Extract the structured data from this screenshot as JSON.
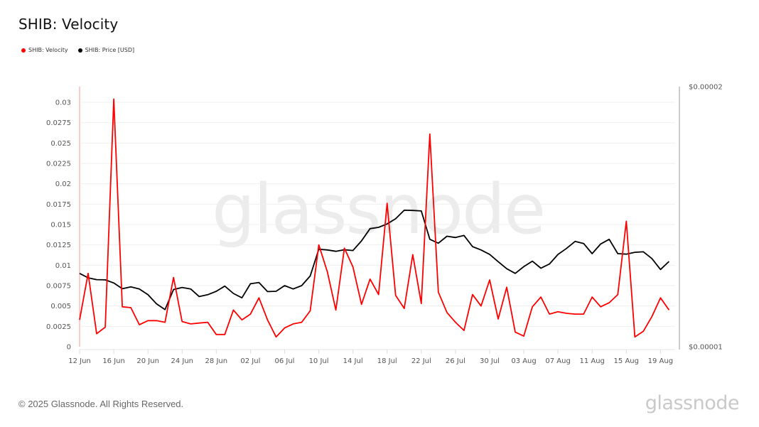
{
  "header": {
    "title": "SHIB: Velocity"
  },
  "legend": [
    {
      "label": "SHIB: Velocity",
      "color": "#ff0000"
    },
    {
      "label": "SHIB: Price [USD]",
      "color": "#000000"
    }
  ],
  "watermark": "glassnode",
  "footer": {
    "copyright": "© 2025 Glassnode. All Rights Reserved.",
    "logo": "glassnode"
  },
  "chart_data": {
    "type": "line",
    "title": "SHIB: Velocity",
    "xlabel": "",
    "ylabel": "",
    "grid": true,
    "legend_position": "top-left",
    "x_tick_labels": [
      "12 Jun",
      "16 Jun",
      "20 Jun",
      "24 Jun",
      "28 Jun",
      "02 Jul",
      "06 Jul",
      "10 Jul",
      "14 Jul",
      "18 Jul",
      "22 Jul",
      "26 Jul",
      "30 Jul",
      "03 Aug",
      "07 Aug",
      "11 Aug",
      "15 Aug",
      "19 Aug"
    ],
    "y_left": {
      "ticks": [
        "0",
        "0.0025",
        "0.005",
        "0.0075",
        "0.01",
        "0.0125",
        "0.015",
        "0.0175",
        "0.02",
        "0.0225",
        "0.025",
        "0.0275",
        "0.03"
      ],
      "ylim": [
        0,
        0.0318
      ]
    },
    "y_right": {
      "ticks": [
        "$0.00001",
        "$0.00002"
      ],
      "ylim": [
        1e-05,
        2e-05
      ],
      "scale": "linear"
    },
    "x": [
      "12 Jun",
      "13 Jun",
      "14 Jun",
      "15 Jun",
      "16 Jun",
      "17 Jun",
      "18 Jun",
      "19 Jun",
      "20 Jun",
      "21 Jun",
      "22 Jun",
      "23 Jun",
      "24 Jun",
      "25 Jun",
      "26 Jun",
      "27 Jun",
      "28 Jun",
      "29 Jun",
      "30 Jun",
      "01 Jul",
      "02 Jul",
      "03 Jul",
      "04 Jul",
      "05 Jul",
      "06 Jul",
      "07 Jul",
      "08 Jul",
      "09 Jul",
      "10 Jul",
      "11 Jul",
      "12 Jul",
      "13 Jul",
      "14 Jul",
      "15 Jul",
      "16 Jul",
      "17 Jul",
      "18 Jul",
      "19 Jul",
      "20 Jul",
      "21 Jul",
      "22 Jul",
      "23 Jul",
      "24 Jul",
      "25 Jul",
      "26 Jul",
      "27 Jul",
      "28 Jul",
      "29 Jul",
      "30 Jul",
      "31 Jul",
      "01 Aug",
      "02 Aug",
      "03 Aug",
      "04 Aug",
      "05 Aug",
      "06 Aug",
      "07 Aug",
      "08 Aug",
      "09 Aug",
      "10 Aug",
      "11 Aug",
      "12 Aug",
      "13 Aug",
      "14 Aug",
      "15 Aug",
      "16 Aug",
      "17 Aug",
      "18 Aug",
      "19 Aug",
      "20 Aug"
    ],
    "series": [
      {
        "name": "SHIB: Velocity",
        "axis": "left",
        "color": "#ff0000",
        "values": [
          0.0033,
          0.009,
          0.0016,
          0.0024,
          0.0304,
          0.0049,
          0.0048,
          0.0027,
          0.0032,
          0.0032,
          0.003,
          0.0085,
          0.0031,
          0.0028,
          0.0029,
          0.003,
          0.0015,
          0.0015,
          0.0045,
          0.0033,
          0.004,
          0.006,
          0.0033,
          0.0012,
          0.0023,
          0.0028,
          0.003,
          0.0044,
          0.0125,
          0.0092,
          0.0045,
          0.0121,
          0.0098,
          0.0052,
          0.0083,
          0.0064,
          0.0176,
          0.0063,
          0.0047,
          0.0113,
          0.0053,
          0.0261,
          0.0067,
          0.0042,
          0.003,
          0.002,
          0.0064,
          0.005,
          0.0082,
          0.0034,
          0.0073,
          0.0018,
          0.0013,
          0.0049,
          0.0061,
          0.004,
          0.0043,
          0.0041,
          0.004,
          0.004,
          0.0061,
          0.0049,
          0.0054,
          0.0064,
          0.0154,
          0.0012,
          0.0019,
          0.0037,
          0.006,
          0.0045
        ]
      },
      {
        "name": "SHIB: Price [USD]",
        "axis": "right",
        "color": "#000000",
        "values": [
          1.282e-05,
          1.265e-05,
          1.258e-05,
          1.257e-05,
          1.245e-05,
          1.223e-05,
          1.23e-05,
          1.222e-05,
          1.2e-05,
          1.165e-05,
          1.143e-05,
          1.22e-05,
          1.228e-05,
          1.222e-05,
          1.193e-05,
          1.2e-05,
          1.213e-05,
          1.233e-05,
          1.205e-05,
          1.188e-05,
          1.242e-05,
          1.247e-05,
          1.212e-05,
          1.213e-05,
          1.235e-05,
          1.222e-05,
          1.235e-05,
          1.272e-05,
          1.375e-05,
          1.372e-05,
          1.367e-05,
          1.373e-05,
          1.37e-05,
          1.407e-05,
          1.454e-05,
          1.459e-05,
          1.472e-05,
          1.492e-05,
          1.525e-05,
          1.524e-05,
          1.522e-05,
          1.413e-05,
          1.398e-05,
          1.425e-05,
          1.42e-05,
          1.428e-05,
          1.385e-05,
          1.372e-05,
          1.355e-05,
          1.327e-05,
          1.3e-05,
          1.282e-05,
          1.308e-05,
          1.329e-05,
          1.302e-05,
          1.318e-05,
          1.355e-05,
          1.378e-05,
          1.405e-05,
          1.397e-05,
          1.358e-05,
          1.395e-05,
          1.413e-05,
          1.358e-05,
          1.356e-05,
          1.363e-05,
          1.365e-05,
          1.339e-05,
          1.297e-05,
          1.328e-05
        ]
      }
    ]
  }
}
